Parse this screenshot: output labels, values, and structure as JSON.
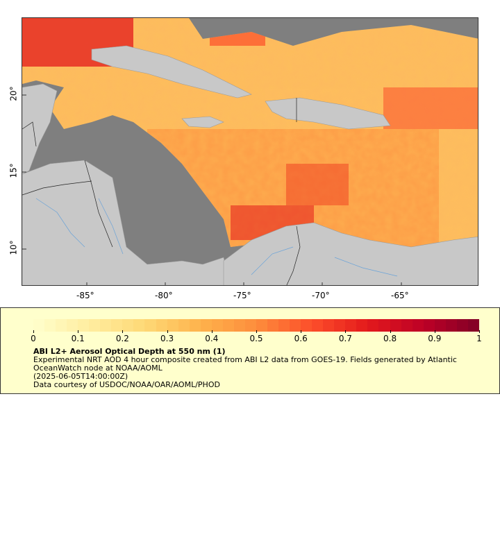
{
  "map": {
    "lon_labels": [
      "-85°",
      "-80°",
      "-75°",
      "-70°",
      "-65°"
    ],
    "lat_labels": [
      "20°",
      "15°",
      "10°"
    ],
    "colors": {
      "ocean_nodata": "#7f7f7f",
      "land": "#c8c8c8",
      "aod_low": "#ffffcc",
      "aod_high": "#800026"
    }
  },
  "legend": {
    "colorbar_ticks": [
      "0",
      "0.1",
      "0.2",
      "0.3",
      "0.4",
      "0.5",
      "0.6",
      "0.7",
      "0.8",
      "0.9",
      "1"
    ],
    "title": "ABI L2+ Aerosol Optical Depth at 550 nm (1)",
    "summary": "Experimental NRT AOD 4 hour composite created from ABI L2 data from GOES-19. Fields generated by Atlantic OceanWatch node at NOAA/AOML",
    "time": "(2025-06-05T14:00:00Z)",
    "credit": "Data courtesy of USDOC/NOAA/OAR/AOML/PHOD"
  }
}
